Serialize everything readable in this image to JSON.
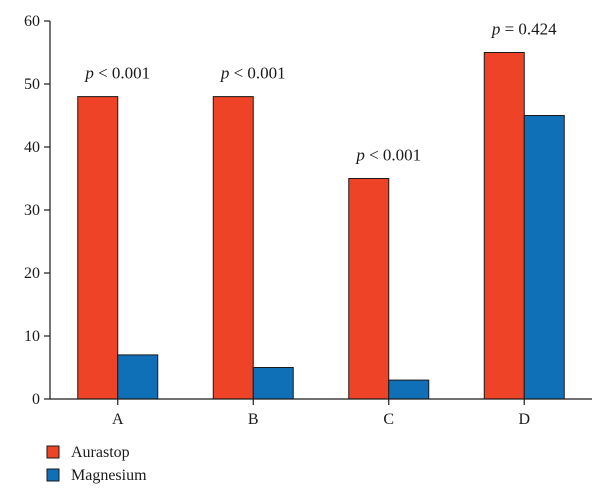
{
  "chart_data": {
    "type": "bar",
    "categories": [
      "A",
      "B",
      "C",
      "D"
    ],
    "series": [
      {
        "name": "Aurastop",
        "color": "#ee4326",
        "values": [
          48,
          48,
          35,
          55
        ]
      },
      {
        "name": "Magnesium",
        "color": "#0f6fb7",
        "values": [
          7,
          5,
          3,
          45
        ]
      }
    ],
    "annotations": [
      {
        "category": "A",
        "prefix": "p",
        "text": "< 0.001"
      },
      {
        "category": "B",
        "prefix": "p",
        "text": "< 0.001"
      },
      {
        "category": "C",
        "prefix": "p",
        "text": "< 0.001"
      },
      {
        "category": "D",
        "prefix": "p",
        "text": "= 0.424"
      }
    ],
    "ylim": [
      0,
      60
    ],
    "yticks": [
      0,
      10,
      20,
      30,
      40,
      50,
      60
    ],
    "grid": false,
    "legend_position": "bottom-left",
    "title": "",
    "xlabel": "",
    "ylabel": ""
  }
}
